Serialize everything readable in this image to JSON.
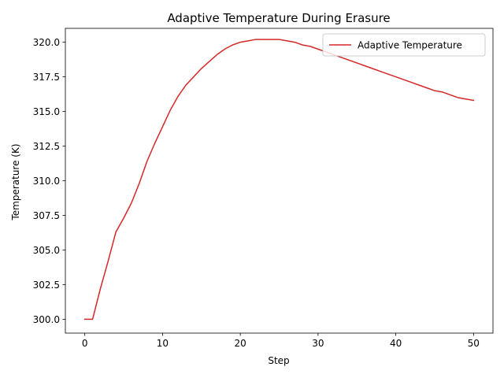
{
  "chart_data": {
    "type": "line",
    "title": "Adaptive Temperature During Erasure",
    "xlabel": "Step",
    "ylabel": "Temperature (K)",
    "xlim": [
      -2.5,
      52.5
    ],
    "ylim": [
      299.0,
      321.0
    ],
    "xticks": [
      0,
      10,
      20,
      30,
      40,
      50
    ],
    "yticks": [
      300.0,
      302.5,
      305.0,
      307.5,
      310.0,
      312.5,
      315.0,
      317.5,
      320.0
    ],
    "xtick_labels": [
      "0",
      "10",
      "20",
      "30",
      "40",
      "50"
    ],
    "ytick_labels": [
      "300.0",
      "302.5",
      "305.0",
      "307.5",
      "310.0",
      "312.5",
      "315.0",
      "317.5",
      "320.0"
    ],
    "grid": false,
    "legend": "top-right",
    "series": [
      {
        "name": "Adaptive Temperature",
        "color": "#d62728",
        "x": [
          0,
          1,
          2,
          3,
          4,
          5,
          6,
          7,
          8,
          9,
          10,
          11,
          12,
          13,
          14,
          15,
          16,
          17,
          18,
          19,
          20,
          21,
          22,
          23,
          24,
          25,
          26,
          27,
          28,
          29,
          30,
          31,
          32,
          33,
          34,
          35,
          36,
          37,
          38,
          39,
          40,
          41,
          42,
          43,
          44,
          45,
          46,
          47,
          48,
          49,
          50
        ],
        "values": [
          300.0,
          300.0,
          302.2,
          304.2,
          306.3,
          307.3,
          308.4,
          309.8,
          311.4,
          312.7,
          313.9,
          315.1,
          316.1,
          316.9,
          317.5,
          318.1,
          318.6,
          319.1,
          319.5,
          319.8,
          320.0,
          320.1,
          320.2,
          320.2,
          320.2,
          320.2,
          320.1,
          320.0,
          319.8,
          319.7,
          319.5,
          319.3,
          319.1,
          318.9,
          318.7,
          318.5,
          318.3,
          318.1,
          317.9,
          317.7,
          317.5,
          317.3,
          317.1,
          316.9,
          316.7,
          316.5,
          316.4,
          316.2,
          316.0,
          315.9,
          315.8
        ]
      }
    ]
  }
}
